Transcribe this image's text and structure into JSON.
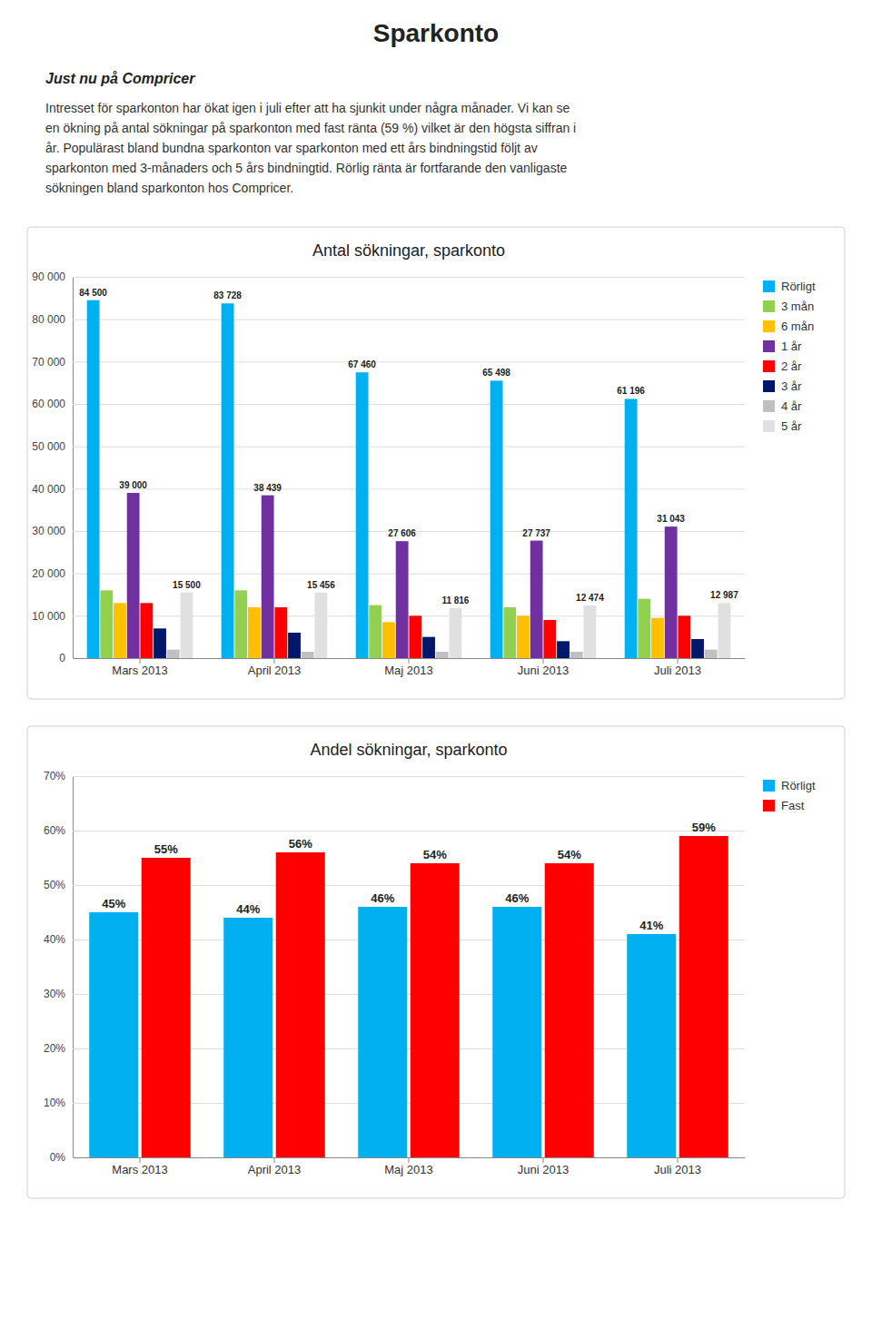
{
  "title": "Sparkonto",
  "header": "Just nu på Compricer",
  "body_text": [
    "Intresset för sparkonton har ökat igen i juli efter att ha sjunkit under några månader. Vi kan se",
    "en ökning på antal sökningar på sparkonton med fast ränta (59 %) vilket är den högsta siffran i",
    "år. Populärast bland bundna sparkonton var sparkonton med ett års bindningstid följt av",
    "sparkonton med 3-månaders och 5 års bindningtid. Rörlig ränta är fortfarande den vanligaste",
    "sökningen bland sparkonton hos Compricer."
  ],
  "chart_data": [
    {
      "type": "bar",
      "title": "Antal sökningar, sparkonto",
      "categories": [
        "Mars 2013",
        "April 2013",
        "Maj 2013",
        "Juni 2013",
        "Juli 2013"
      ],
      "series": [
        {
          "name": "Rörligt",
          "color": "#00B0F0",
          "values": [
            84500,
            83728,
            67460,
            65498,
            61196
          ],
          "data_labels": true,
          "value_labels": [
            "84 500",
            "83 728",
            "67 460",
            "65 498",
            "61 196"
          ]
        },
        {
          "name": "3 mån",
          "color": "#92D050",
          "values": [
            16000,
            16000,
            12500,
            12000,
            14000
          ]
        },
        {
          "name": "6 mån",
          "color": "#FFC000",
          "values": [
            13000,
            12000,
            8500,
            10000,
            9500
          ]
        },
        {
          "name": "1 år",
          "color": "#7030A0",
          "values": [
            39000,
            38439,
            27606,
            27737,
            31043
          ],
          "data_labels": true,
          "value_labels": [
            "39 000",
            "38 439",
            "27 606",
            "27 737",
            "31 043"
          ]
        },
        {
          "name": "2 år",
          "color": "#FF0000",
          "values": [
            13000,
            12000,
            10000,
            9000,
            10000
          ]
        },
        {
          "name": "3 år",
          "color": "#00176B",
          "values": [
            7000,
            6000,
            5000,
            4000,
            4500
          ]
        },
        {
          "name": "4 år",
          "color": "#C0C0C0",
          "values": [
            2000,
            1500,
            1500,
            1500,
            2000
          ]
        },
        {
          "name": "5 år",
          "color": "#E0E0E0",
          "values": [
            15500,
            15456,
            11816,
            12474,
            12987
          ],
          "data_labels": true,
          "value_labels": [
            "15 500",
            "15 456",
            "11 816",
            "12 474",
            "12 987"
          ]
        }
      ],
      "ylim": [
        0,
        90000
      ],
      "yticks": [
        0,
        {
          "value": 10000,
          "label": "10 000"
        },
        {
          "value": 20000,
          "label": "20 000"
        },
        {
          "value": 30000,
          "label": "30 000"
        },
        {
          "value": 40000,
          "label": "40 000"
        },
        {
          "value": 50000,
          "label": "50 000"
        },
        {
          "value": 60000,
          "label": "60 000"
        },
        {
          "value": 70000,
          "label": "70 000"
        },
        {
          "value": 80000,
          "label": "80 000"
        },
        {
          "value": 90000,
          "label": "90 000"
        }
      ],
      "grid": true,
      "legend": "right"
    },
    {
      "type": "bar",
      "title": "Andel sökningar, sparkonto",
      "categories": [
        "Mars 2013",
        "April 2013",
        "Maj 2013",
        "Juni 2013",
        "Juli 2013"
      ],
      "series": [
        {
          "name": "Rörligt",
          "color": "#00B0F0",
          "values": [
            0.45,
            0.44,
            0.46,
            0.46,
            0.41
          ],
          "data_labels": true,
          "value_labels": [
            "45%",
            "44%",
            "46%",
            "46%",
            "41%"
          ]
        },
        {
          "name": "Fast",
          "color": "#FF0000",
          "values": [
            0.55,
            0.56,
            0.54,
            0.54,
            0.59
          ],
          "data_labels": true,
          "value_labels": [
            "55%",
            "56%",
            "54%",
            "54%",
            "59%"
          ]
        }
      ],
      "ylim": [
        0,
        0.7
      ],
      "yticks": [
        {
          "value": 0,
          "label": "0%"
        },
        {
          "value": 0.1,
          "label": "10%"
        },
        {
          "value": 0.2,
          "label": "20%"
        },
        {
          "value": 0.3,
          "label": "30%"
        },
        {
          "value": 0.4,
          "label": "40%"
        },
        {
          "value": 0.5,
          "label": "50%"
        },
        {
          "value": 0.6,
          "label": "60%"
        },
        {
          "value": 0.7,
          "label": "70%"
        }
      ],
      "grid": true,
      "legend": "right"
    }
  ]
}
